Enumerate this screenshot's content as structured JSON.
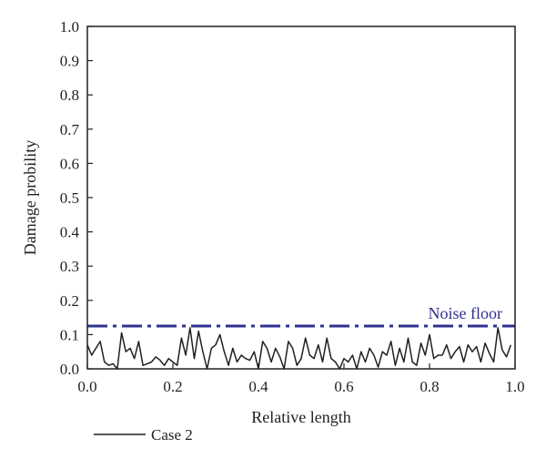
{
  "chart_data": {
    "type": "line",
    "title": "",
    "xlabel": "Relative length",
    "ylabel": "Damage probility",
    "xlim": [
      0,
      1
    ],
    "ylim": [
      0,
      1
    ],
    "x_ticks": [
      "0.0",
      "0.2",
      "0.4",
      "0.6",
      "0.8",
      "1.0"
    ],
    "y_ticks": [
      "0.0",
      "0.1",
      "0.2",
      "0.3",
      "0.4",
      "0.5",
      "0.6",
      "0.7",
      "0.8",
      "0.9",
      "1.0"
    ],
    "grid": false,
    "legend_position": "bottom-left",
    "series": [
      {
        "name": "Case 2",
        "color": "#231f20",
        "x": [
          0.0,
          0.01,
          0.02,
          0.03,
          0.04,
          0.05,
          0.06,
          0.07,
          0.08,
          0.09,
          0.1,
          0.11,
          0.12,
          0.13,
          0.14,
          0.15,
          0.16,
          0.17,
          0.18,
          0.19,
          0.2,
          0.21,
          0.22,
          0.23,
          0.24,
          0.25,
          0.26,
          0.27,
          0.28,
          0.29,
          0.3,
          0.31,
          0.32,
          0.33,
          0.34,
          0.35,
          0.36,
          0.37,
          0.38,
          0.39,
          0.4,
          0.41,
          0.42,
          0.43,
          0.44,
          0.45,
          0.46,
          0.47,
          0.48,
          0.49,
          0.5,
          0.51,
          0.52,
          0.53,
          0.54,
          0.55,
          0.56,
          0.57,
          0.58,
          0.59,
          0.6,
          0.61,
          0.62,
          0.63,
          0.64,
          0.65,
          0.66,
          0.67,
          0.68,
          0.69,
          0.7,
          0.71,
          0.72,
          0.73,
          0.74,
          0.75,
          0.76,
          0.77,
          0.78,
          0.79,
          0.8,
          0.81,
          0.82,
          0.83,
          0.84,
          0.85,
          0.86,
          0.87,
          0.88,
          0.89,
          0.9,
          0.91,
          0.92,
          0.93,
          0.94,
          0.95,
          0.96,
          0.97,
          0.98,
          0.99
        ],
        "y": [
          0.07,
          0.04,
          0.06,
          0.08,
          0.02,
          0.01,
          0.015,
          0.0,
          0.105,
          0.05,
          0.06,
          0.03,
          0.08,
          0.01,
          0.015,
          0.02,
          0.035,
          0.025,
          0.01,
          0.03,
          0.02,
          0.01,
          0.09,
          0.04,
          0.12,
          0.03,
          0.11,
          0.05,
          0.0,
          0.06,
          0.07,
          0.1,
          0.05,
          0.01,
          0.06,
          0.02,
          0.04,
          0.03,
          0.025,
          0.05,
          0.0,
          0.08,
          0.06,
          0.02,
          0.06,
          0.035,
          0.0,
          0.08,
          0.06,
          0.01,
          0.03,
          0.09,
          0.04,
          0.03,
          0.07,
          0.02,
          0.09,
          0.03,
          0.02,
          0.0,
          0.03,
          0.02,
          0.04,
          0.0,
          0.05,
          0.02,
          0.06,
          0.04,
          0.005,
          0.05,
          0.04,
          0.08,
          0.01,
          0.06,
          0.02,
          0.09,
          0.02,
          0.01,
          0.075,
          0.04,
          0.1,
          0.03,
          0.04,
          0.04,
          0.07,
          0.03,
          0.05,
          0.065,
          0.02,
          0.07,
          0.05,
          0.065,
          0.02,
          0.075,
          0.045,
          0.02,
          0.12,
          0.055,
          0.035,
          0.07
        ]
      }
    ],
    "annotations": [
      {
        "text": "Noise floor",
        "y": 0.125,
        "color": "#2e3192",
        "style": "dash-dot"
      }
    ]
  }
}
